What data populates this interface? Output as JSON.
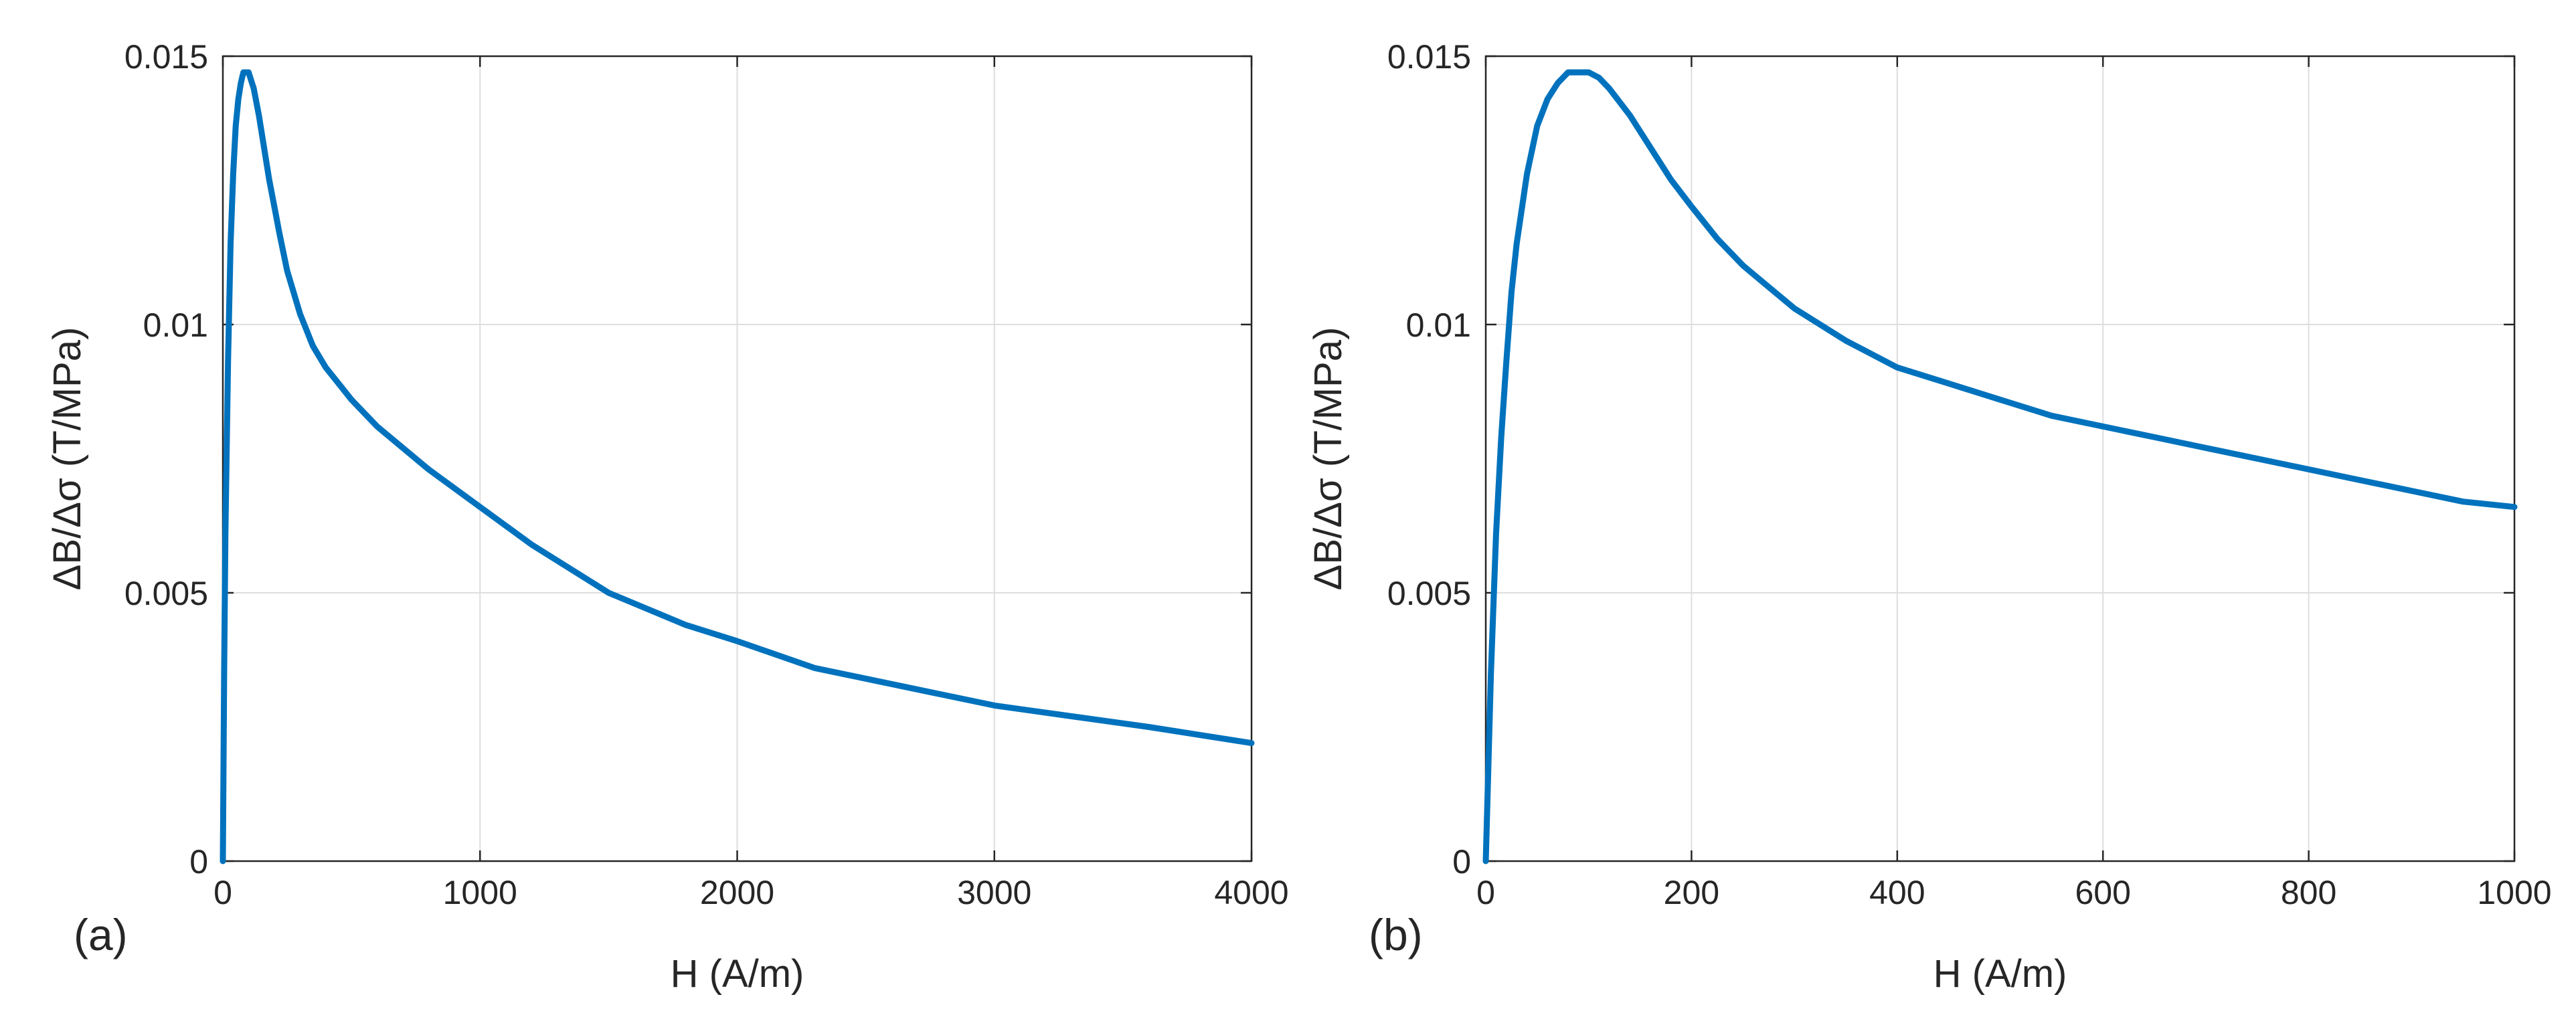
{
  "colors": {
    "series": "#0072BD",
    "axis": "#262626",
    "grid": "#DEDEDE"
  },
  "chart_data": [
    {
      "type": "line",
      "panel_label": "(a)",
      "title": "",
      "xlabel": "H (A/m)",
      "ylabel": "ΔB/Δσ (T/MPa)",
      "xlim": [
        0,
        4000
      ],
      "ylim": [
        0,
        0.015
      ],
      "xticks": [
        0,
        1000,
        2000,
        3000,
        4000
      ],
      "xtick_labels": [
        "0",
        "1000",
        "2000",
        "3000",
        "4000"
      ],
      "yticks": [
        0,
        0.005,
        0.01,
        0.015
      ],
      "ytick_labels": [
        "0",
        "0.005",
        "0.01",
        "0.015"
      ],
      "grid": true,
      "series": [
        {
          "name": "ΔB/Δσ",
          "x": [
            0,
            5,
            10,
            20,
            30,
            40,
            50,
            60,
            70,
            80,
            90,
            100,
            120,
            140,
            160,
            180,
            200,
            220,
            250,
            300,
            350,
            400,
            450,
            500,
            600,
            700,
            800,
            1000,
            1200,
            1500,
            1800,
            2000,
            2300,
            2500,
            2800,
            3000,
            3300,
            3600,
            4000
          ],
          "y": [
            0,
            0.0035,
            0.0061,
            0.0093,
            0.0115,
            0.0128,
            0.0137,
            0.0142,
            0.0145,
            0.0147,
            0.0147,
            0.0147,
            0.0144,
            0.0139,
            0.0133,
            0.0127,
            0.0122,
            0.0117,
            0.011,
            0.0102,
            0.0096,
            0.0092,
            0.0089,
            0.0086,
            0.0081,
            0.0077,
            0.0073,
            0.0066,
            0.0059,
            0.005,
            0.0044,
            0.0041,
            0.0036,
            0.0034,
            0.0031,
            0.0029,
            0.0027,
            0.0025,
            0.0022
          ]
        }
      ]
    },
    {
      "type": "line",
      "panel_label": "(b)",
      "title": "",
      "xlabel": "H (A/m)",
      "ylabel": "ΔB/Δσ (T/MPa)",
      "xlim": [
        0,
        1000
      ],
      "ylim": [
        0,
        0.015
      ],
      "xticks": [
        0,
        200,
        400,
        600,
        800,
        1000
      ],
      "xtick_labels": [
        "0",
        "200",
        "400",
        "600",
        "800",
        "1000"
      ],
      "yticks": [
        0,
        0.005,
        0.01,
        0.015
      ],
      "ytick_labels": [
        "0",
        "0.005",
        "0.01",
        "0.015"
      ],
      "grid": true,
      "series": [
        {
          "name": "ΔB/Δσ",
          "x": [
            0,
            5,
            10,
            15,
            20,
            25,
            30,
            40,
            50,
            60,
            70,
            80,
            90,
            100,
            110,
            120,
            140,
            160,
            180,
            200,
            225,
            250,
            275,
            300,
            350,
            400,
            450,
            500,
            550,
            600,
            650,
            700,
            750,
            800,
            850,
            900,
            950,
            1000
          ],
          "y": [
            0,
            0.0035,
            0.0061,
            0.0079,
            0.0093,
            0.0106,
            0.0115,
            0.0128,
            0.0137,
            0.0142,
            0.0145,
            0.0147,
            0.0147,
            0.0147,
            0.0146,
            0.0144,
            0.0139,
            0.0133,
            0.0127,
            0.0122,
            0.0116,
            0.0111,
            0.0107,
            0.0103,
            0.0097,
            0.0092,
            0.0089,
            0.0086,
            0.0083,
            0.0081,
            0.0079,
            0.0077,
            0.0075,
            0.0073,
            0.0071,
            0.0069,
            0.0067,
            0.0066
          ]
        }
      ]
    }
  ]
}
